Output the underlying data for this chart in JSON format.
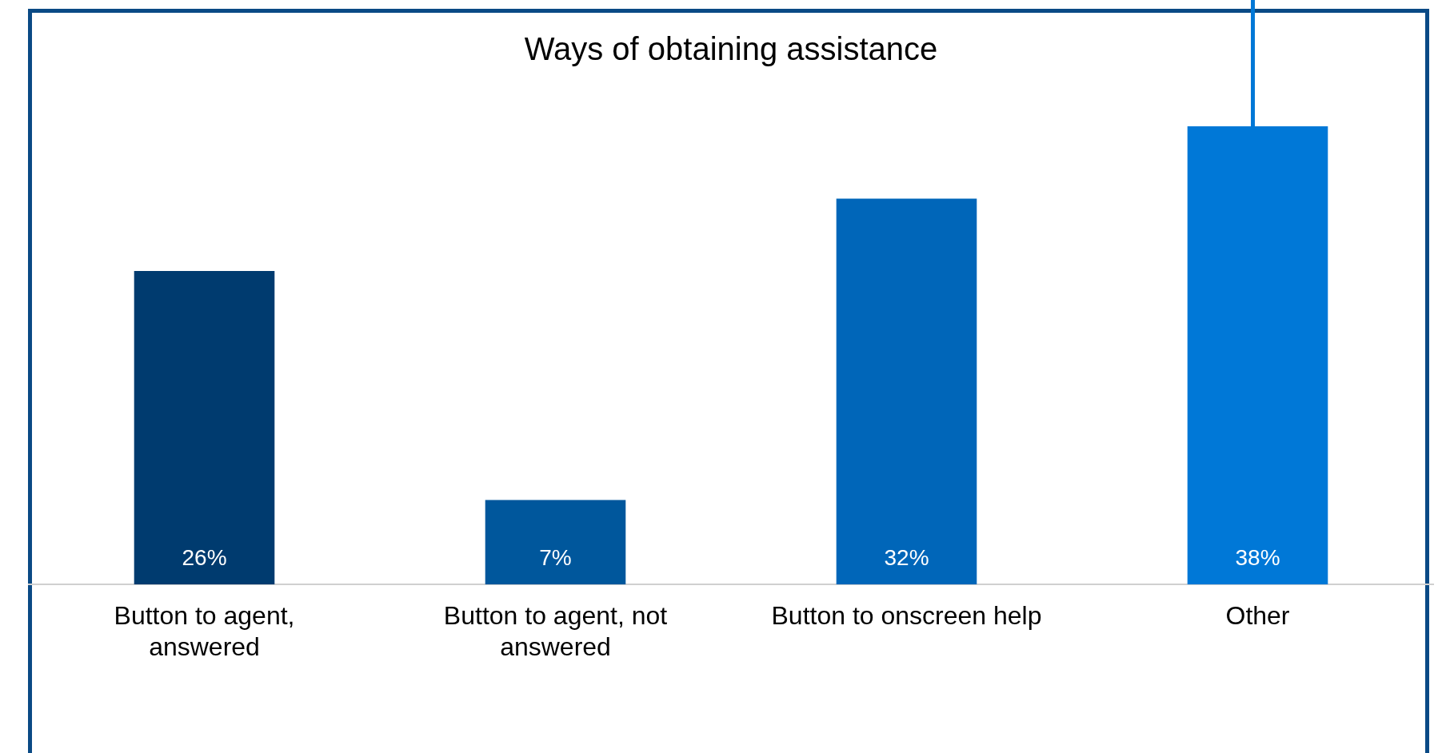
{
  "chart_data": {
    "type": "bar",
    "title": "Ways of obtaining assistance",
    "categories": [
      "Button to agent, answered",
      "Button to agent, not answered",
      "Button to onscreen help",
      "Other"
    ],
    "values": [
      26,
      7,
      32,
      38
    ],
    "colors": [
      "#003b6f",
      "#00579c",
      "#0066b9",
      "#0078d7"
    ],
    "value_labels": [
      "26%",
      "7%",
      "32%",
      "38%"
    ],
    "tick_labels": "x",
    "grid": false,
    "legend": false
  }
}
